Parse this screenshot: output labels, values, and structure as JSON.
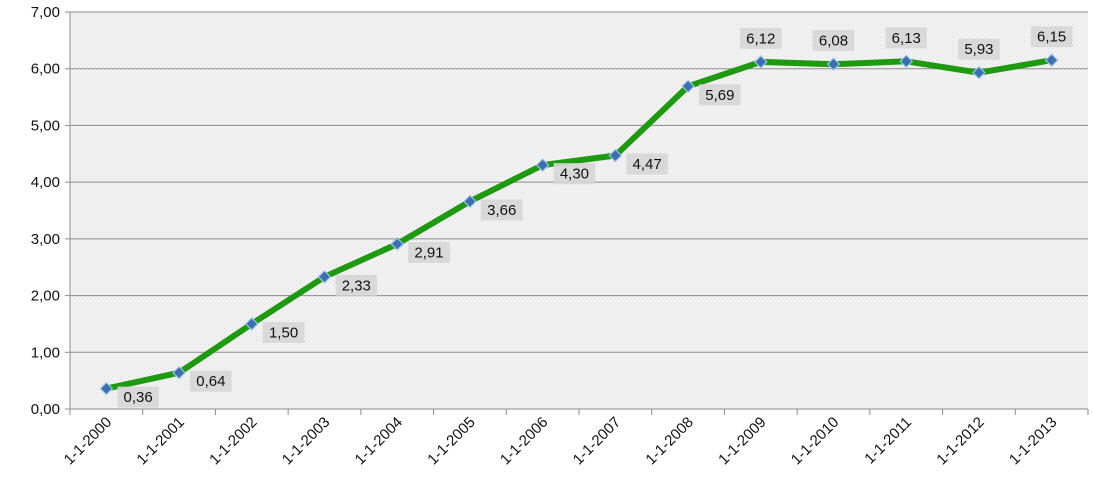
{
  "chart_data": {
    "type": "line",
    "title": "",
    "xlabel": "",
    "ylabel": "",
    "categories": [
      "1-1-2000",
      "1-1-2001",
      "1-1-2002",
      "1-1-2003",
      "1-1-2004",
      "1-1-2005",
      "1-1-2006",
      "1-1-2007",
      "1-1-2008",
      "1-1-2009",
      "1-1-2010",
      "1-1-2011",
      "1-1-2012",
      "1-1-2013"
    ],
    "series": [
      {
        "values": [
          0.36,
          0.64,
          1.5,
          2.33,
          2.91,
          3.66,
          4.3,
          4.47,
          5.69,
          6.12,
          6.08,
          6.13,
          5.93,
          6.15
        ],
        "data_labels": [
          "0,36",
          "0,64",
          "1,50",
          "2,33",
          "2,91",
          "3,66",
          "4,30",
          "4,47",
          "5,69",
          "6,12",
          "6,08",
          "6,13",
          "5,93",
          "6,15"
        ]
      }
    ],
    "ylim": [
      0,
      7
    ],
    "yticks": [
      0,
      1,
      2,
      3,
      4,
      5,
      6,
      7
    ],
    "ytick_labels": [
      "0,00",
      "1,00",
      "2,00",
      "3,00",
      "4,00",
      "5,00",
      "6,00",
      "7,00"
    ],
    "grid": "horizontal",
    "legend": "none",
    "colors": {
      "line": "#1e9a10",
      "marker": "#3c6fb0",
      "grid": "#8c8c8c",
      "plot_background": "#ececec",
      "label_background": "#d6d6d6"
    }
  }
}
